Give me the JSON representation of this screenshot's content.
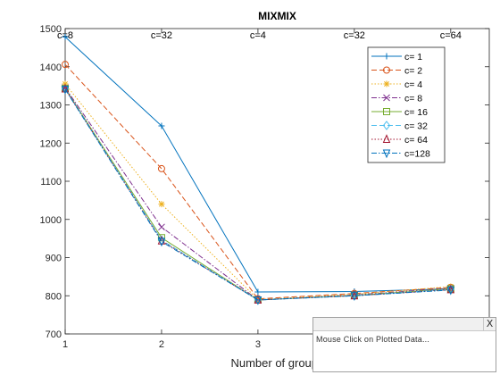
{
  "chart_data": {
    "type": "line",
    "title": "MIXMIX",
    "xlabel": "Number of groups",
    "ylabel": "",
    "x": [
      1,
      2,
      3,
      4,
      5
    ],
    "xlim": [
      1,
      5.4
    ],
    "ylim": [
      700,
      1500
    ],
    "xticks": [
      "1",
      "2",
      "3",
      "4",
      "5"
    ],
    "yticks": [
      "700",
      "800",
      "900",
      "1000",
      "1100",
      "1200",
      "1300",
      "1400",
      "1500"
    ],
    "top_annotations": [
      "c=8",
      "c=32",
      "c=4",
      "c=32",
      "c=64"
    ],
    "grid": false,
    "legend_position": "top-right",
    "series": [
      {
        "name": "c=  1",
        "values": [
          1478,
          1245,
          810,
          811,
          818
        ],
        "color": "#0072BD",
        "marker": "plus",
        "dash": "solid"
      },
      {
        "name": "c=  2",
        "values": [
          1406,
          1133,
          792,
          806,
          822
        ],
        "color": "#D95319",
        "marker": "circle",
        "dash": "dashed"
      },
      {
        "name": "c=  4",
        "values": [
          1355,
          1040,
          790,
          804,
          824
        ],
        "color": "#EDB120",
        "marker": "asterisk",
        "dash": "dotted"
      },
      {
        "name": "c=  8",
        "values": [
          1345,
          980,
          789,
          802,
          820
        ],
        "color": "#7E2F8E",
        "marker": "x",
        "dash": "dashdot"
      },
      {
        "name": "c= 16",
        "values": [
          1343,
          952,
          789,
          801,
          818
        ],
        "color": "#77AC30",
        "marker": "square",
        "dash": "solid"
      },
      {
        "name": "c= 32",
        "values": [
          1342,
          946,
          789,
          800,
          817
        ],
        "color": "#4DBEEE",
        "marker": "diamond",
        "dash": "dashed"
      },
      {
        "name": "c= 64",
        "values": [
          1342,
          944,
          789,
          800,
          816
        ],
        "color": "#A2142F",
        "marker": "triangle-up",
        "dash": "dotted"
      },
      {
        "name": "c=128",
        "values": [
          1341,
          942,
          789,
          800,
          815
        ],
        "color": "#0072BD",
        "marker": "triangle-down",
        "dash": "dashdot"
      }
    ]
  },
  "popup": {
    "close_label": "X",
    "message": "Mouse Click on Plotted Data..."
  }
}
